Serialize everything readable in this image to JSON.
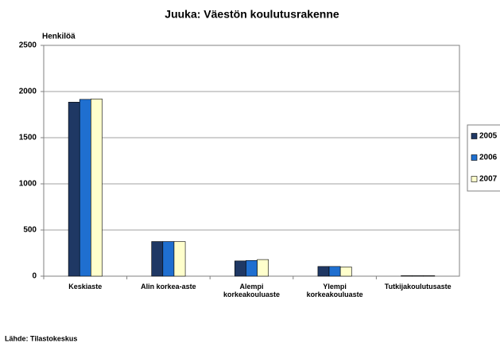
{
  "chart_data": {
    "type": "bar",
    "title": "Juuka: Väestön koulutusrakenne",
    "y_label": "Henkilöä",
    "source": "Lähde: Tilastokeskus",
    "categories": [
      "Keskiaste",
      "Alin korkea-aste",
      "Alempi korkeakouluaste",
      "Ylempi korkeakouluaste",
      "Tutkijakoulutusaste"
    ],
    "series": [
      {
        "name": "2005",
        "color": "#1f3864",
        "values": [
          1885,
          375,
          165,
          105,
          5
        ]
      },
      {
        "name": "2006",
        "color": "#1f6fd0",
        "values": [
          1915,
          375,
          170,
          105,
          5
        ]
      },
      {
        "name": "2007",
        "color": "#ffffcc",
        "values": [
          1920,
          375,
          180,
          100,
          5
        ]
      }
    ],
    "ylim": [
      0,
      2500
    ],
    "yticks": [
      0,
      500,
      1000,
      1500,
      2000,
      2500
    ],
    "grid": true,
    "legend": "right"
  }
}
